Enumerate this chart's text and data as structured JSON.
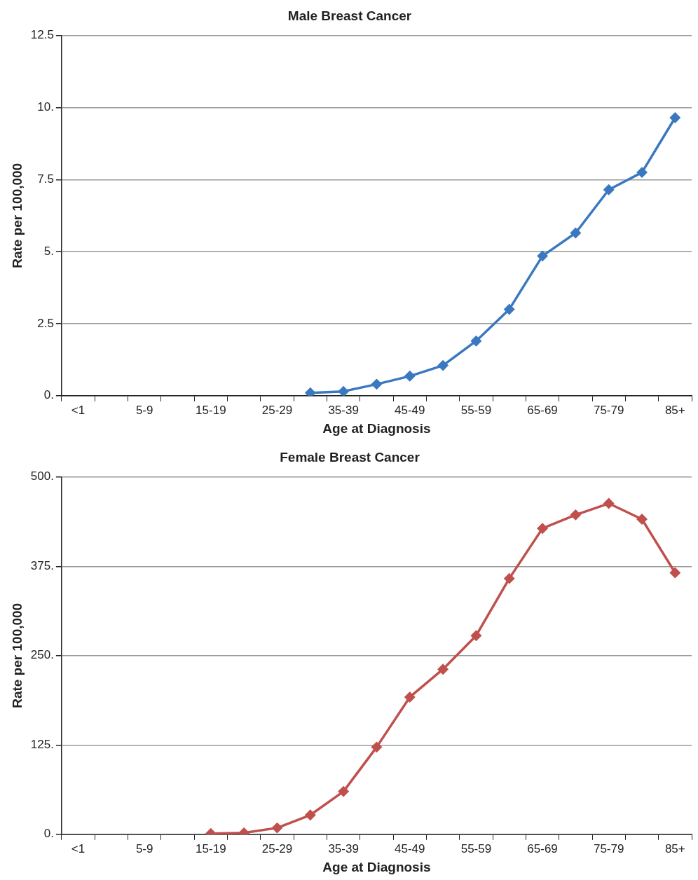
{
  "chart_data": [
    {
      "type": "line",
      "title": "Male Breast Cancer",
      "xlabel": "Age at Diagnosis",
      "ylabel": "Rate per 100,000",
      "categories": [
        "<1",
        null,
        "5-9",
        null,
        "15-19",
        null,
        "25-29",
        null,
        "35-39",
        null,
        "45-49",
        null,
        "55-59",
        null,
        "65-69",
        null,
        "75-79",
        null,
        "85+"
      ],
      "series": [
        {
          "color": "#3a78c0",
          "values": [
            null,
            null,
            null,
            null,
            null,
            null,
            null,
            0.1,
            0.15,
            0.4,
            0.68,
            1.05,
            1.9,
            3.0,
            4.85,
            5.65,
            7.15,
            7.75,
            9.65
          ]
        }
      ],
      "ylim": [
        0,
        12.5
      ],
      "yticks": [
        {
          "value": 0,
          "label": "0."
        },
        {
          "value": 2.5,
          "label": "2.5"
        },
        {
          "value": 5,
          "label": "5."
        },
        {
          "value": 7.5,
          "label": "7.5"
        },
        {
          "value": 10,
          "label": "10."
        },
        {
          "value": 12.5,
          "label": "12.5"
        }
      ],
      "grid": "y",
      "marker": "diamond"
    },
    {
      "type": "line",
      "title": "Female Breast Cancer",
      "xlabel": "Age at Diagnosis",
      "ylabel": "Rate per 100,000",
      "categories": [
        "<1",
        null,
        "5-9",
        null,
        "15-19",
        null,
        "25-29",
        null,
        "35-39",
        null,
        "45-49",
        null,
        "55-59",
        null,
        "65-69",
        null,
        "75-79",
        null,
        "85+"
      ],
      "series": [
        {
          "color": "#c0504d",
          "values": [
            null,
            null,
            null,
            null,
            1,
            2,
            9,
            27,
            60,
            122,
            192,
            231,
            278,
            358,
            428,
            447,
            463,
            441,
            366
          ]
        }
      ],
      "ylim": [
        0,
        500
      ],
      "yticks": [
        {
          "value": 0,
          "label": "0."
        },
        {
          "value": 125,
          "label": "125."
        },
        {
          "value": 250,
          "label": "250."
        },
        {
          "value": 375,
          "label": "375."
        },
        {
          "value": 500,
          "label": "500."
        }
      ],
      "grid": "y",
      "marker": "diamond"
    }
  ]
}
